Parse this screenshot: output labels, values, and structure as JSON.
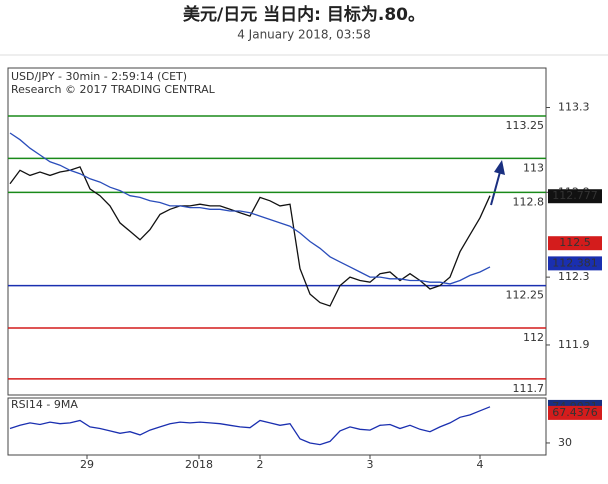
{
  "header": {
    "title": "美元/日元 当日内: 目标为.80。",
    "subtitle": "4 January 2018, 03:58"
  },
  "chart_data": [
    {
      "type": "line",
      "title": "USD/JPY - 30min - 2:59:14 (CET)",
      "subtitle": "Research © 2017 TRADING CENTRAL",
      "x": [
        0,
        1,
        2,
        3,
        4,
        5,
        6,
        7,
        8,
        9,
        10,
        11,
        12,
        13,
        14,
        15,
        16,
        17,
        18,
        19,
        20,
        21,
        22,
        23,
        24,
        25,
        26,
        27,
        28,
        29,
        30,
        31,
        32,
        33,
        34,
        35,
        36,
        37,
        38,
        39,
        40,
        41,
        42,
        43,
        44,
        45,
        46,
        47,
        48
      ],
      "xlim": [
        -0.2,
        53.6
      ],
      "xticks": [
        {
          "value": 7.7,
          "label": "29"
        },
        {
          "value": 18.9,
          "label": "2018"
        },
        {
          "value": 25,
          "label": "2"
        },
        {
          "value": 36,
          "label": "3"
        },
        {
          "value": 47,
          "label": "4"
        }
      ],
      "ylim": [
        111.605,
        113.533
      ],
      "yticks": [
        111.9,
        112.3,
        112.8,
        113.3
      ],
      "series": [
        {
          "name": "USD/JPY",
          "color": "#111111",
          "values": [
            112.85,
            112.93,
            112.9,
            112.92,
            112.9,
            112.92,
            112.93,
            112.95,
            112.82,
            112.78,
            112.72,
            112.62,
            112.57,
            112.52,
            112.58,
            112.67,
            112.7,
            112.72,
            112.72,
            112.73,
            112.72,
            112.72,
            112.7,
            112.68,
            112.66,
            112.77,
            112.75,
            112.72,
            112.73,
            112.35,
            112.2,
            112.15,
            112.13,
            112.25,
            112.3,
            112.28,
            112.27,
            112.32,
            112.33,
            112.28,
            112.32,
            112.28,
            112.23,
            112.25,
            112.3,
            112.45,
            112.55,
            112.65,
            112.78
          ]
        },
        {
          "name": "MA",
          "color": "#2a4dbb",
          "values": [
            113.15,
            113.11,
            113.06,
            113.02,
            112.98,
            112.96,
            112.93,
            112.91,
            112.88,
            112.86,
            112.83,
            112.81,
            112.78,
            112.77,
            112.75,
            112.74,
            112.72,
            112.72,
            112.71,
            112.71,
            112.7,
            112.7,
            112.69,
            112.69,
            112.68,
            112.66,
            112.64,
            112.62,
            112.6,
            112.56,
            112.51,
            112.47,
            112.42,
            112.39,
            112.36,
            112.33,
            112.3,
            112.3,
            112.29,
            112.29,
            112.28,
            112.28,
            112.27,
            112.27,
            112.26,
            112.28,
            112.31,
            112.33,
            112.36
          ]
        }
      ],
      "levels": [
        {
          "value": 113.25,
          "color": "#1a8a1a"
        },
        {
          "value": 113,
          "color": "#1a8a1a"
        },
        {
          "value": 112.8,
          "color": "#1a8a1a"
        },
        {
          "value": 112.25,
          "color": "#1a2fb0"
        },
        {
          "value": 112,
          "color": "#d41c1c"
        },
        {
          "value": 111.7,
          "color": "#d41c1c"
        }
      ],
      "markers": [
        {
          "value": 112.777,
          "color": "#111111"
        },
        {
          "value": 112.5,
          "color": "#d41c1c"
        },
        {
          "value": 112.381,
          "color": "#1a2fb0"
        }
      ]
    },
    {
      "type": "line",
      "title": "RSI14 - 9MA",
      "ylim": [
        15,
        86
      ],
      "yticks": [
        30
      ],
      "series": [
        {
          "name": "RSI14",
          "color": "#1a2fb0",
          "values": [
            48,
            52,
            55,
            53,
            56,
            54,
            55,
            58,
            50,
            48,
            45,
            42,
            44,
            40,
            46,
            50,
            54,
            56,
            55,
            56,
            55,
            54,
            52,
            50,
            49,
            58,
            55,
            52,
            54,
            35,
            30,
            28,
            32,
            45,
            50,
            47,
            46,
            52,
            53,
            48,
            52,
            47,
            44,
            50,
            55,
            62,
            65,
            70,
            75
          ]
        }
      ],
      "markers": [
        {
          "value": 74.9031,
          "color": "#1a2f80"
        },
        {
          "value": 67.4376,
          "color": "#d41c1c"
        }
      ]
    }
  ]
}
